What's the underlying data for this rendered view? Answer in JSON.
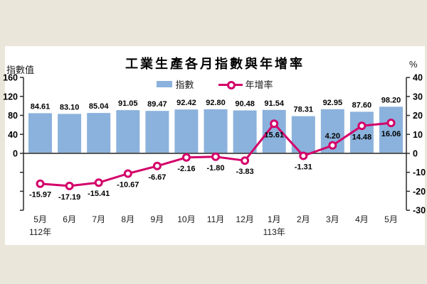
{
  "page": {
    "background_color": "#EAE7DA",
    "card_color": "#FFFFFF"
  },
  "chart": {
    "title": "工業生產各月指數與年增率",
    "left_axis_unit": "指數值",
    "right_axis_unit": "%"
  },
  "chart_data": {
    "type": "bar+line",
    "title": "工業生產各月指數與年增率",
    "categories": [
      "5月",
      "6月",
      "7月",
      "8月",
      "9月",
      "10月",
      "11月",
      "12月",
      "1月",
      "2月",
      "3月",
      "4月",
      "5月"
    ],
    "year_markers": [
      {
        "index": 0,
        "label": "112年"
      },
      {
        "index": 8,
        "label": "113年"
      }
    ],
    "series": [
      {
        "name": "指數",
        "type": "bar",
        "axis": "left",
        "color": "#8BB2DC",
        "values": [
          84.61,
          83.1,
          85.04,
          91.05,
          89.47,
          92.42,
          92.8,
          90.48,
          91.54,
          78.31,
          92.95,
          87.6,
          98.2
        ]
      },
      {
        "name": "年增率",
        "type": "line",
        "axis": "right",
        "color": "#D30069",
        "values": [
          -15.97,
          -17.19,
          -15.41,
          -10.67,
          -6.67,
          -2.16,
          -1.8,
          -3.83,
          15.61,
          -1.31,
          4.2,
          14.48,
          16.06
        ]
      }
    ],
    "left_axis": {
      "label": "指數值",
      "range": [
        0,
        160
      ],
      "ticks": [
        0,
        40,
        80,
        120,
        160
      ]
    },
    "right_axis": {
      "label": "%",
      "range": [
        -30,
        40
      ],
      "ticks": [
        -30,
        -20,
        -10,
        0,
        10,
        20,
        30,
        40
      ]
    },
    "legend_position": "top-center",
    "grid": false,
    "zero_line_color": "#595959",
    "axis_color": "#2b2b2b",
    "value_label_color": "#000000"
  }
}
